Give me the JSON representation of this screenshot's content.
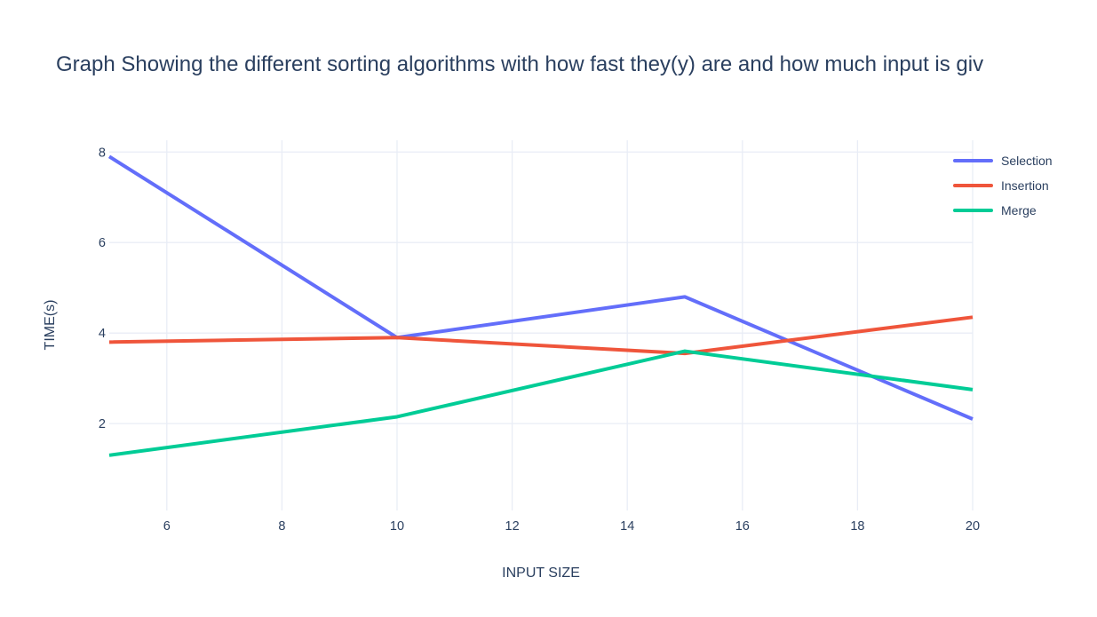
{
  "chart_data": {
    "type": "line",
    "title": "Graph Showing the different sorting algorithms with how fast they(y) are and how much input is giv",
    "xlabel": "INPUT SIZE",
    "ylabel": "TIME(s)",
    "x": [
      5,
      10,
      15,
      20
    ],
    "series": [
      {
        "name": "Selection",
        "color": "#636EFA",
        "values": [
          7.9,
          3.9,
          4.8,
          2.1
        ]
      },
      {
        "name": "Insertion",
        "color": "#EF553B",
        "values": [
          3.8,
          3.9,
          3.55,
          4.35
        ]
      },
      {
        "name": "Merge",
        "color": "#00CC96",
        "values": [
          1.3,
          2.15,
          3.6,
          2.75
        ]
      }
    ],
    "xlim": [
      5,
      20
    ],
    "ylim": [
      0.08,
      8.26
    ],
    "xticks": [
      6,
      8,
      10,
      12,
      14,
      16,
      18,
      20
    ],
    "yticks": [
      2,
      4,
      6,
      8
    ],
    "grid": true,
    "legend_position": "right",
    "text_color": "#2a3f5f",
    "grid_color": "#e9edf6",
    "background_color": "#ffffff",
    "line_width": 4
  }
}
